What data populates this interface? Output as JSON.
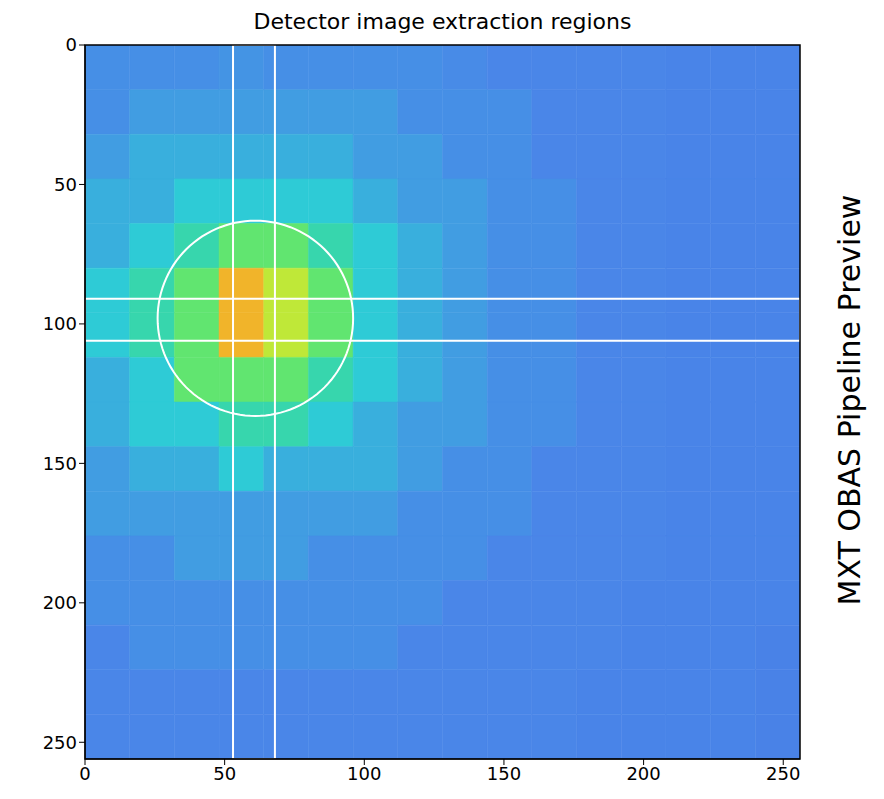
{
  "chart_data": {
    "type": "heatmap",
    "title": "Detector image extraction regions",
    "subtitle": "MXT OBAS Pipeline Preview",
    "xlim": [
      0,
      256
    ],
    "xticks": [
      0,
      50,
      100,
      150,
      200,
      250
    ],
    "ylim": [
      256,
      0
    ],
    "yticks": [
      0,
      50,
      100,
      150,
      200,
      250
    ],
    "zlim": [
      0,
      10
    ],
    "cells": [
      [
        1.7,
        1.7,
        1.7,
        1.8,
        1.7,
        1.7,
        1.7,
        1.7,
        1.6,
        1.5,
        1.5,
        1.5,
        1.5,
        1.4,
        1.4,
        1.4
      ],
      [
        1.7,
        2.0,
        2.0,
        2.0,
        2.0,
        2.0,
        2.0,
        1.7,
        1.7,
        1.7,
        1.5,
        1.5,
        1.5,
        1.4,
        1.4,
        1.4
      ],
      [
        2.0,
        2.4,
        2.4,
        2.4,
        2.4,
        2.4,
        2.0,
        2.0,
        1.7,
        1.7,
        1.5,
        1.5,
        1.5,
        1.4,
        1.4,
        1.4
      ],
      [
        2.4,
        2.4,
        3.0,
        3.0,
        3.0,
        3.0,
        2.4,
        2.0,
        2.0,
        1.7,
        1.7,
        1.5,
        1.5,
        1.4,
        1.4,
        1.4
      ],
      [
        2.4,
        3.0,
        3.8,
        5.0,
        5.0,
        3.8,
        3.0,
        2.4,
        2.0,
        1.7,
        1.7,
        1.5,
        1.5,
        1.4,
        1.4,
        1.4
      ],
      [
        3.0,
        3.8,
        5.0,
        8.0,
        6.5,
        5.0,
        3.0,
        2.4,
        2.0,
        1.7,
        1.7,
        1.5,
        1.5,
        1.4,
        1.4,
        1.4
      ],
      [
        3.0,
        3.8,
        5.0,
        8.0,
        6.5,
        5.0,
        3.0,
        2.4,
        2.0,
        1.7,
        1.7,
        1.5,
        1.5,
        1.4,
        1.4,
        1.4
      ],
      [
        2.4,
        3.0,
        5.0,
        5.0,
        5.0,
        3.8,
        3.0,
        2.4,
        2.0,
        1.7,
        1.7,
        1.5,
        1.5,
        1.4,
        1.4,
        1.4
      ],
      [
        2.4,
        3.0,
        3.0,
        3.8,
        3.8,
        3.0,
        2.4,
        2.0,
        2.0,
        1.7,
        1.7,
        1.5,
        1.5,
        1.4,
        1.4,
        1.4
      ],
      [
        2.0,
        2.4,
        2.4,
        3.0,
        2.4,
        2.4,
        2.4,
        2.0,
        1.7,
        1.7,
        1.5,
        1.5,
        1.5,
        1.4,
        1.4,
        1.4
      ],
      [
        2.0,
        2.0,
        2.0,
        2.0,
        2.0,
        2.0,
        2.0,
        1.7,
        1.7,
        1.7,
        1.5,
        1.5,
        1.5,
        1.4,
        1.4,
        1.4
      ],
      [
        1.7,
        1.7,
        2.0,
        2.0,
        2.0,
        1.7,
        1.7,
        1.7,
        1.7,
        1.5,
        1.5,
        1.5,
        1.5,
        1.4,
        1.4,
        1.4
      ],
      [
        1.7,
        1.7,
        1.7,
        1.7,
        1.7,
        1.7,
        1.7,
        1.7,
        1.5,
        1.5,
        1.5,
        1.5,
        1.4,
        1.4,
        1.4,
        1.4
      ],
      [
        1.5,
        1.7,
        1.7,
        1.7,
        1.7,
        1.7,
        1.7,
        1.5,
        1.5,
        1.5,
        1.5,
        1.5,
        1.4,
        1.4,
        1.4,
        1.3
      ],
      [
        1.5,
        1.5,
        1.5,
        1.5,
        1.5,
        1.5,
        1.5,
        1.5,
        1.5,
        1.5,
        1.5,
        1.4,
        1.4,
        1.4,
        1.4,
        1.3
      ],
      [
        1.5,
        1.5,
        1.5,
        1.5,
        1.5,
        1.5,
        1.5,
        1.5,
        1.5,
        1.5,
        1.5,
        1.4,
        1.4,
        1.4,
        1.4,
        1.3
      ]
    ],
    "regions": [
      {
        "shape": "circle",
        "center": [
          61,
          98
        ],
        "radius": 35
      },
      {
        "shape": "box",
        "x": [
          53,
          68
        ],
        "y": [
          0,
          256
        ]
      },
      {
        "shape": "box",
        "x": [
          0,
          256
        ],
        "y": [
          91,
          106
        ]
      }
    ]
  }
}
